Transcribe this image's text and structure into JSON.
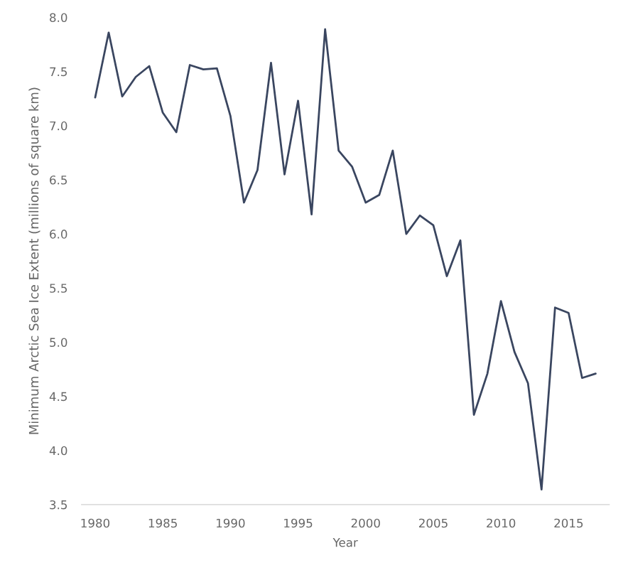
{
  "chart_data": {
    "type": "line",
    "xlabel": "Year",
    "ylabel": "Minimum Arctic Sea Ice Extent (millions of square km)",
    "x": [
      1980,
      1981,
      1982,
      1983,
      1984,
      1985,
      1986,
      1987,
      1988,
      1989,
      1990,
      1991,
      1992,
      1993,
      1994,
      1995,
      1996,
      1997,
      1998,
      1999,
      2000,
      2001,
      2002,
      2003,
      2004,
      2005,
      2006,
      2007,
      2008,
      2009,
      2010,
      2011,
      2012,
      2013,
      2014,
      2015,
      2016,
      2017
    ],
    "series": [
      {
        "color": "#3a4660",
        "values": [
          7.26,
          7.86,
          7.27,
          7.45,
          7.55,
          7.12,
          6.94,
          7.56,
          7.52,
          7.53,
          7.09,
          6.29,
          6.59,
          7.58,
          6.55,
          7.23,
          6.18,
          7.89,
          6.77,
          6.62,
          6.29,
          6.36,
          6.77,
          6.0,
          6.17,
          6.08,
          5.61,
          5.94,
          4.33,
          4.71,
          5.38,
          4.91,
          4.62,
          3.64,
          5.32,
          5.27,
          4.67,
          4.71
        ]
      }
    ],
    "xlim": [
      1979,
      2018
    ],
    "xticks": [
      1980,
      1985,
      1990,
      1995,
      2000,
      2005,
      2010,
      2015
    ],
    "ylim": [
      3.5,
      8.0
    ],
    "yticks": [
      {
        "value": 3.5,
        "label": "3.5"
      },
      {
        "value": 4.0,
        "label": "4.0"
      },
      {
        "value": 4.5,
        "label": "4.5"
      },
      {
        "value": 5.0,
        "label": "5.0"
      },
      {
        "value": 5.5,
        "label": "5.5"
      },
      {
        "value": 6.0,
        "label": "6.0"
      },
      {
        "value": 6.5,
        "label": "6.5"
      },
      {
        "value": 7.0,
        "label": "7.0"
      },
      {
        "value": 7.5,
        "label": "7.5"
      },
      {
        "value": 8.0,
        "label": "8.0"
      }
    ],
    "grid": false,
    "legend": false
  }
}
